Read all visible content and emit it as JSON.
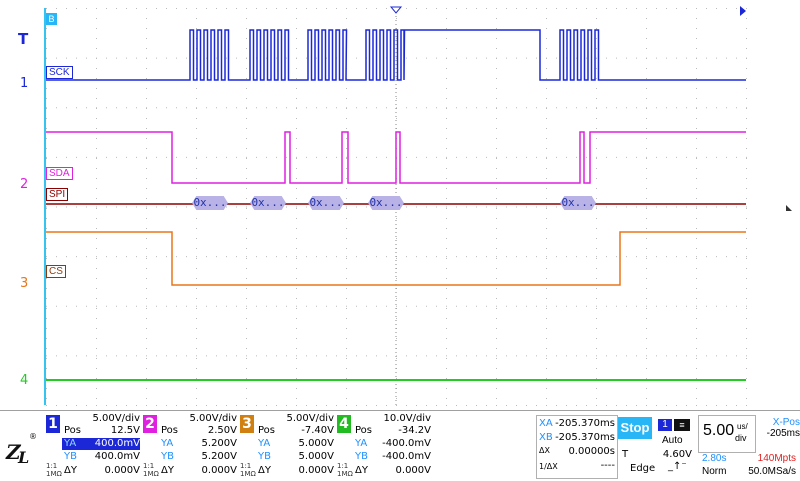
{
  "trigger_marker": "T",
  "top_badge": "B",
  "channels": [
    {
      "num": "1",
      "label": "SCK",
      "color": "#1c28d8"
    },
    {
      "num": "2",
      "label": "SDA",
      "color": "#e020e0"
    },
    {
      "num": "3",
      "label": "CS",
      "color": "#e8761a"
    },
    {
      "num": "4",
      "label": "",
      "color": "#22cc22"
    }
  ],
  "bus": {
    "label": "SPI",
    "color": "#8b0000",
    "packets": [
      "0x...",
      "0x...",
      "0x...",
      "0x...",
      "0x..."
    ]
  },
  "panels": [
    {
      "num": "1",
      "color": "#1c28d8",
      "div": "5.00V/div",
      "pos_k": "Pos",
      "pos": "12.5V",
      "ya": "400.0mV",
      "yb": "400.0mV",
      "coupling": "1:1",
      "imp": "1MΩ",
      "dy": "0.000V"
    },
    {
      "num": "2",
      "color": "#e020e0",
      "div": "5.00V/div",
      "pos_k": "Pos",
      "pos": "2.50V",
      "ya": "5.200V",
      "yb": "5.200V",
      "coupling": "1:1",
      "imp": "1MΩ",
      "dy": "0.000V"
    },
    {
      "num": "3",
      "color": "#d08010",
      "div": "5.00V/div",
      "pos_k": "Pos",
      "pos": "-7.40V",
      "ya": "5.000V",
      "yb": "5.000V",
      "coupling": "1:1",
      "imp": "1MΩ",
      "dy": "0.000V"
    },
    {
      "num": "4",
      "color": "#22bb22",
      "div": "10.0V/div",
      "pos_k": "Pos",
      "pos": "-34.2V",
      "ya": "-400.0mV",
      "yb": "-400.0mV",
      "coupling": "1:1",
      "imp": "1MΩ",
      "dy": "0.000V"
    }
  ],
  "labels": {
    "ya": "YA",
    "yb": "YB",
    "dy": "ΔY"
  },
  "cursors": {
    "xa_k": "XA",
    "xa": "-205.370ms",
    "xb_k": "XB",
    "xb": "-205.370ms",
    "dx_k": "ΔX",
    "dx": "0.00000s",
    "inv_k": "1/ΔX",
    "inv": "----"
  },
  "run": {
    "state": "Stop"
  },
  "trigger": {
    "source": "1",
    "mode": "Auto",
    "t_k": "T",
    "level": "4.60V",
    "type": "Edge"
  },
  "timebase": {
    "value": "5.00",
    "unit_top": "us/",
    "unit_bot": "div",
    "xpos_k": "X-Pos",
    "xpos": "-205ms",
    "time": "2.80s",
    "mpts": "140Mpts",
    "acq": "Norm",
    "rate": "50.0MSa/s"
  }
}
